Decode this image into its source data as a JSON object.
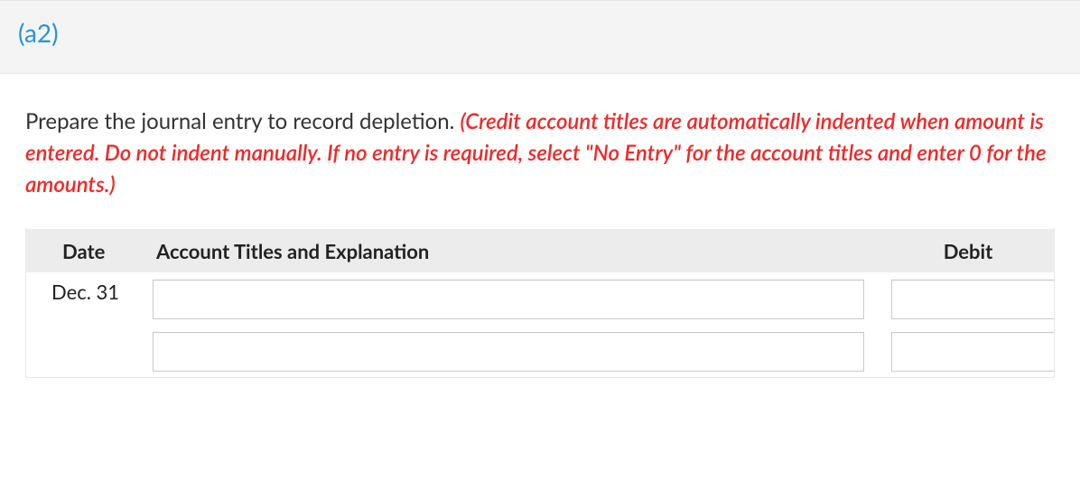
{
  "section": {
    "label": "(a2)"
  },
  "instruction": {
    "text": "Prepare the journal entry to record depletion. ",
    "note": "(Credit account titles are automatically indented when amount is entered. Do not indent manually. If no entry is required, select \"No Entry\" for the account titles and enter 0 for the amounts.)"
  },
  "table": {
    "headers": {
      "date": "Date",
      "account": "Account Titles and Explanation",
      "debit": "Debit"
    },
    "rows": [
      {
        "date": "Dec. 31",
        "account": "",
        "debit": ""
      },
      {
        "date": "",
        "account": "",
        "debit": ""
      }
    ]
  },
  "style": {
    "header_bg": "#f4f4f4",
    "section_label_color": "#2893d8",
    "note_color": "#ef2828",
    "table_header_bg": "#ececec",
    "border_color": "#e8e8e8",
    "input_border": "#c9c9c9"
  }
}
